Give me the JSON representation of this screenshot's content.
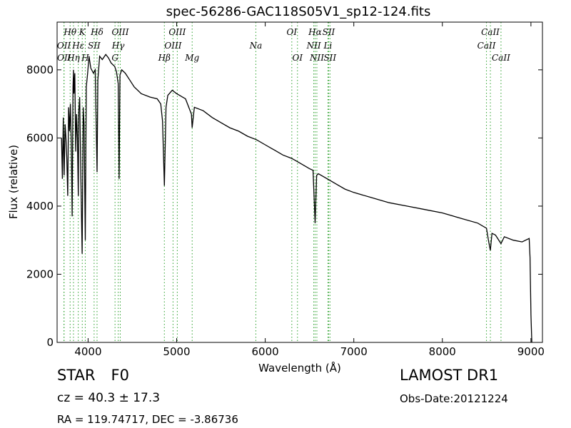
{
  "chart_data": {
    "type": "line",
    "title": "spec-56286-GAC118S05V1_sp12-124.fits",
    "xlabel": "Wavelength (Å)",
    "ylabel": "Flux (relative)",
    "xlim": [
      3650,
      9130
    ],
    "ylim": [
      0,
      9400
    ],
    "xticks": [
      4000,
      5000,
      6000,
      7000,
      8000,
      9000
    ],
    "yticks": [
      0,
      2000,
      4000,
      6000,
      8000
    ],
    "grid": false,
    "line_color": "#000000",
    "marker_color": "#2ca02c",
    "series": [
      {
        "x": [
          3700,
          3710,
          3720,
          3730,
          3740,
          3750,
          3760,
          3770,
          3780,
          3790,
          3800,
          3810,
          3820,
          3830,
          3835,
          3840,
          3850,
          3860,
          3870,
          3880,
          3889,
          3895,
          3905,
          3920,
          3933,
          3945,
          3955,
          3968,
          3980,
          3995,
          4010,
          4030,
          4060,
          4080,
          4101,
          4110,
          4130,
          4160,
          4200,
          4230,
          4260,
          4300,
          4320,
          4340,
          4350,
          4360,
          4380,
          4420,
          4470,
          4520,
          4600,
          4700,
          4780,
          4820,
          4840,
          4861,
          4880,
          4900,
          4950,
          5000,
          5100,
          5167,
          5175,
          5200,
          5300,
          5400,
          5500,
          5600,
          5700,
          5800,
          5900,
          6000,
          6100,
          6200,
          6300,
          6400,
          6500,
          6540,
          6563,
          6580,
          6600,
          6700,
          6800,
          6900,
          7000,
          7200,
          7400,
          7600,
          7800,
          8000,
          8200,
          8400,
          8498,
          8520,
          8542,
          8560,
          8600,
          8662,
          8700,
          8800,
          8900,
          8980,
          8990,
          9000,
          9010
        ],
        "y": [
          6000,
          4800,
          6600,
          4900,
          6400,
          6000,
          5400,
          4300,
          6900,
          6200,
          7000,
          5800,
          3700,
          7500,
          8000,
          7300,
          7900,
          5600,
          6700,
          6000,
          4300,
          6800,
          7200,
          4600,
          2600,
          6900,
          6400,
          3000,
          7500,
          7900,
          8400,
          8050,
          7900,
          8000,
          5000,
          7700,
          8400,
          8300,
          8450,
          8350,
          8200,
          8100,
          7950,
          7600,
          4800,
          7850,
          8000,
          7900,
          7700,
          7500,
          7300,
          7200,
          7150,
          7000,
          6500,
          4600,
          6900,
          7250,
          7400,
          7300,
          7150,
          6700,
          6300,
          6900,
          6800,
          6600,
          6450,
          6300,
          6200,
          6050,
          5950,
          5800,
          5650,
          5500,
          5400,
          5250,
          5100,
          5050,
          3500,
          4900,
          4950,
          4800,
          4650,
          4500,
          4400,
          4250,
          4100,
          4000,
          3900,
          3800,
          3650,
          3500,
          3350,
          3000,
          2700,
          3200,
          3150,
          2900,
          3100,
          3000,
          2950,
          3050,
          2500,
          800,
          0
        ]
      }
    ],
    "lines": [
      {
        "x": 3727,
        "label": "OII",
        "row": 1
      },
      {
        "x": 3729,
        "label": "OII",
        "row": 2
      },
      {
        "x": 3797,
        "label": "Hθ",
        "row": 0
      },
      {
        "x": 3835,
        "label": "Hη",
        "row": 2
      },
      {
        "x": 3889,
        "label": "Hε",
        "row": 1
      },
      {
        "x": 3934,
        "label": "K",
        "row": 0
      },
      {
        "x": 3968,
        "label": "H",
        "row": 2
      },
      {
        "x": 4068,
        "label": "SII",
        "row": 1
      },
      {
        "x": 4101,
        "label": "Hδ",
        "row": 0
      },
      {
        "x": 4304,
        "label": "G",
        "row": 2
      },
      {
        "x": 4340,
        "label": "Hγ",
        "row": 1
      },
      {
        "x": 4363,
        "label": "OIII",
        "row": 0
      },
      {
        "x": 4861,
        "label": "Hβ",
        "row": 2
      },
      {
        "x": 4959,
        "label": "OIII",
        "row": 1
      },
      {
        "x": 5007,
        "label": "OIII",
        "row": 0
      },
      {
        "x": 5175,
        "label": "Mg",
        "row": 2
      },
      {
        "x": 5894,
        "label": "Na",
        "row": 1
      },
      {
        "x": 6300,
        "label": "OI",
        "row": 0
      },
      {
        "x": 6364,
        "label": "OI",
        "row": 2
      },
      {
        "x": 6548,
        "label": "NII",
        "row": 1
      },
      {
        "x": 6563,
        "label": "Hα",
        "row": 0
      },
      {
        "x": 6583,
        "label": "NII",
        "row": 2
      },
      {
        "x": 6708,
        "label": "Li",
        "row": 1
      },
      {
        "x": 6716,
        "label": "SII",
        "row": 0
      },
      {
        "x": 6731,
        "label": "SII",
        "row": 2
      },
      {
        "x": 8498,
        "label": "CaII",
        "row": 1
      },
      {
        "x": 8542,
        "label": "CaII",
        "row": 0
      },
      {
        "x": 8662,
        "label": "CaII",
        "row": 2
      }
    ]
  },
  "info": {
    "class_label": "STAR",
    "subclass": "F0",
    "survey": "LAMOST DR1",
    "redshift": "cz = 40.3  ± 17.3",
    "obs_date": "Obs-Date:20121224",
    "coords": "RA = 119.74717, DEC = -3.86736"
  }
}
